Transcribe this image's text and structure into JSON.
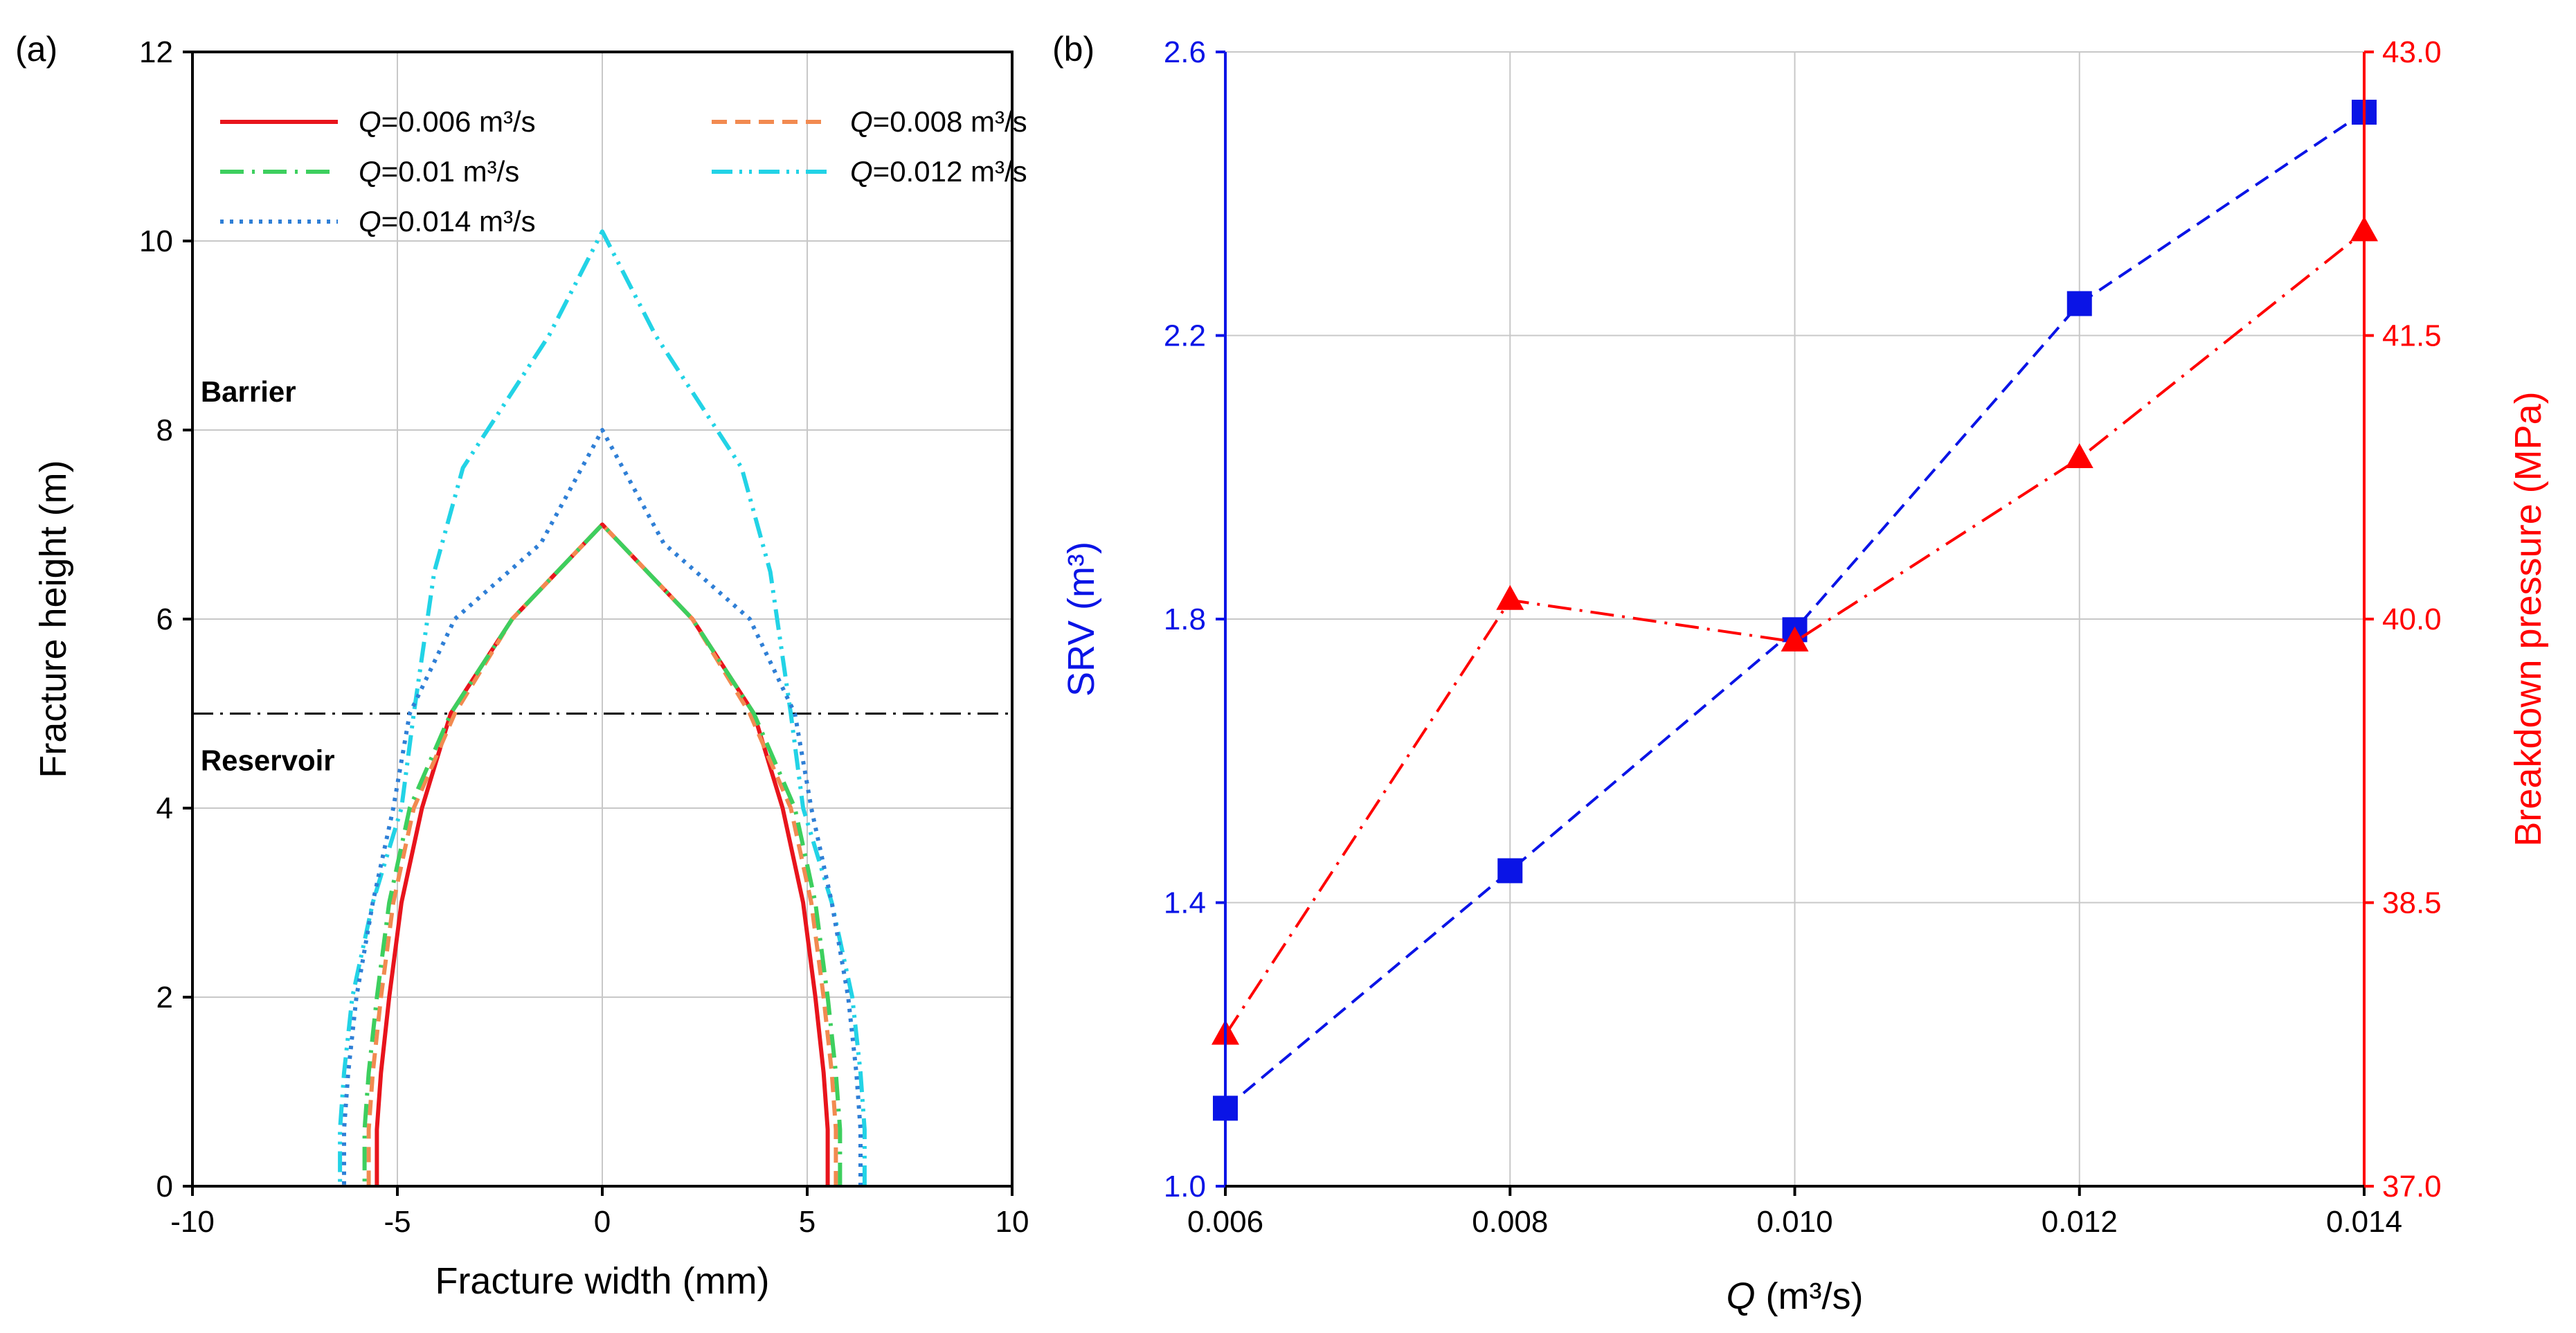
{
  "colors": {
    "red": "#e8141c",
    "orange": "#f28a50",
    "green": "#3dcf5e",
    "cyan": "#22d3e6",
    "blue": "#2f7fd6",
    "srv_blue": "#0a14e6",
    "bp_red": "#ff0000",
    "grid": "#c8c8c8",
    "axis": "#000000"
  },
  "chart_data": [
    {
      "panel_label": "(a)",
      "type": "line",
      "xlabel": "Fracture width (mm)",
      "ylabel": "Fracture height (m)",
      "xlim": [
        -10,
        10
      ],
      "ylim": [
        0,
        12
      ],
      "xticks": [
        -10,
        -5,
        0,
        5,
        10
      ],
      "yticks": [
        0,
        2,
        4,
        6,
        8,
        10,
        12
      ],
      "grid": true,
      "legend_position": "top",
      "annotations": [
        {
          "text": "Barrier",
          "x": -9.8,
          "y": 8.3
        },
        {
          "text": "Reservoir",
          "x": -9.8,
          "y": 4.4
        }
      ],
      "reference_line": {
        "y": 5.0,
        "style": "dash-dot"
      },
      "series": [
        {
          "q_label": "Q",
          "legend_text": "=0.006 m³/s",
          "color_key": "red",
          "style": "solid",
          "x": [
            5.5,
            5.5,
            5.4,
            5.2,
            4.9,
            4.4,
            3.7,
            2.2,
            0,
            -2.2,
            -3.7,
            -4.4,
            -4.9,
            -5.2,
            -5.4,
            -5.5,
            -5.5
          ],
          "y": [
            0,
            0.6,
            1.2,
            2,
            3,
            4,
            5,
            6,
            7,
            6,
            5,
            4,
            3,
            2,
            1.2,
            0.6,
            0
          ]
        },
        {
          "q_label": "Q",
          "legend_text": "=0.008 m³/s",
          "color_key": "orange",
          "style": "dash",
          "x": [
            5.7,
            5.7,
            5.6,
            5.4,
            5.1,
            4.6,
            3.6,
            2.2,
            0,
            -2.2,
            -3.6,
            -4.6,
            -5.1,
            -5.4,
            -5.6,
            -5.7,
            -5.7
          ],
          "y": [
            0,
            0.6,
            1.2,
            2,
            3,
            4,
            5,
            6,
            7,
            6,
            5,
            4,
            3,
            2,
            1.2,
            0.6,
            0
          ]
        },
        {
          "q_label": "Q",
          "legend_text": "=0.01 m³/s",
          "color_key": "green",
          "style": "dashdot",
          "x": [
            5.8,
            5.8,
            5.7,
            5.5,
            5.2,
            4.7,
            3.7,
            2.2,
            0,
            -2.2,
            -3.7,
            -4.7,
            -5.2,
            -5.5,
            -5.7,
            -5.8,
            -5.8
          ],
          "y": [
            0,
            0.6,
            1.2,
            2,
            3,
            4,
            5,
            6,
            7,
            6,
            5,
            4,
            3,
            2,
            1.2,
            0.6,
            0
          ]
        },
        {
          "q_label": "Q",
          "legend_text": "=0.012 m³/s",
          "color_key": "cyan",
          "style": "dashdotdot",
          "x": [
            6.4,
            6.4,
            6.3,
            6.1,
            5.6,
            4.9,
            4.6,
            4.1,
            3.4,
            2.5,
            1.3,
            0,
            -1.3,
            -2.5,
            -3.4,
            -4.1,
            -4.6,
            -4.9,
            -5.6,
            -6.1,
            -6.3,
            -6.4,
            -6.4
          ],
          "y": [
            0,
            0.6,
            1.2,
            2,
            3,
            4,
            5,
            6.5,
            7.6,
            8.2,
            9.0,
            10.1,
            9.0,
            8.2,
            7.6,
            6.5,
            5,
            4,
            3,
            2,
            1.2,
            0.6,
            0
          ]
        },
        {
          "q_label": "Q",
          "legend_text": "=0.014 m³/s",
          "color_key": "blue",
          "style": "dot",
          "x": [
            6.3,
            6.3,
            6.2,
            6.0,
            5.6,
            5.1,
            4.7,
            3.6,
            1.5,
            0,
            -1.5,
            -3.6,
            -4.7,
            -5.1,
            -5.6,
            -6.0,
            -6.2,
            -6.3,
            -6.3
          ],
          "y": [
            0,
            0.6,
            1.2,
            2,
            3,
            4,
            5,
            6,
            6.8,
            8.0,
            6.8,
            6,
            5,
            4,
            3,
            2,
            1.2,
            0.6,
            0
          ]
        }
      ]
    },
    {
      "panel_label": "(b)",
      "type": "line",
      "xlabel_prefix": "Q",
      "xlabel_rest": " (m³/s)",
      "categories": [
        "0.006",
        "0.008",
        "0.010",
        "0.012",
        "0.014"
      ],
      "x": [
        0.006,
        0.008,
        0.01,
        0.012,
        0.014
      ],
      "xlim": [
        0.006,
        0.014
      ],
      "grid": true,
      "left_axis": {
        "label": "SRV (m³)",
        "ylim": [
          1.0,
          2.6
        ],
        "ticks": [
          "1.0",
          "1.4",
          "1.8",
          "2.2",
          "2.6"
        ],
        "tick_values": [
          1.0,
          1.4,
          1.8,
          2.2,
          2.6
        ]
      },
      "right_axis": {
        "label": "Breakdown pressure (MPa)",
        "ylim": [
          37.0,
          43.0
        ],
        "ticks": [
          "37.0",
          "38.5",
          "40.0",
          "41.5",
          "43.0"
        ],
        "tick_values": [
          37.0,
          38.5,
          40.0,
          41.5,
          43.0
        ]
      },
      "series": [
        {
          "name": "SRV",
          "axis": "left",
          "marker": "square",
          "style": "dash",
          "color_key": "srv_blue",
          "values": [
            1.11,
            1.445,
            1.785,
            2.245,
            2.515
          ]
        },
        {
          "name": "Breakdown pressure",
          "axis": "right",
          "marker": "triangle",
          "style": "dashdot",
          "color_key": "bp_red",
          "values": [
            37.8,
            40.1,
            39.88,
            40.85,
            42.05
          ]
        }
      ]
    }
  ]
}
